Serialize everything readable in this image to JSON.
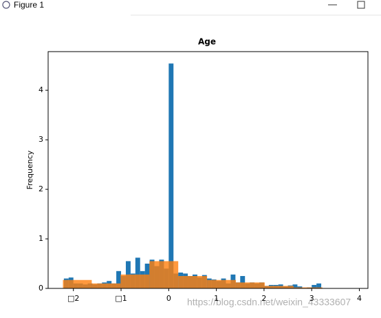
{
  "window_title": "Figure 1",
  "watermark": "https://blog.csdn.net/weixin_43333607",
  "chart_data": {
    "type": "histogram",
    "title": "Age",
    "y_label": "Frequency",
    "xlim": [
      -2.53,
      4.18
    ],
    "ylim": [
      0,
      4.78
    ],
    "xticks": [
      {
        "value": -2,
        "label": "□2"
      },
      {
        "value": -1,
        "label": "□1"
      },
      0,
      1,
      2,
      3,
      4
    ],
    "yticks": [
      0,
      1,
      2,
      3,
      4
    ],
    "series": [
      {
        "color": "#1f77b4",
        "opacity": 1,
        "bins": [
          -2.2,
          -2.1,
          -2.0,
          -1.9,
          -1.8,
          -1.7,
          -1.6,
          -1.5,
          -1.4,
          -1.3,
          -1.2,
          -1.1,
          -1.0,
          -0.9,
          -0.8,
          -0.7,
          -0.6,
          -0.5,
          -0.4,
          -0.3,
          -0.2,
          -0.1,
          0.0,
          0.1,
          0.2,
          0.3,
          0.4,
          0.5,
          0.6,
          0.7,
          0.8,
          0.9,
          1.0,
          1.1,
          1.2,
          1.3,
          1.4,
          1.5,
          1.6,
          1.7,
          1.8,
          1.9,
          2.0,
          2.1,
          2.2,
          2.3,
          2.4,
          2.5,
          2.6,
          2.7,
          2.8,
          2.9,
          3.0,
          3.1,
          3.2,
          3.3
        ],
        "values": [
          0.2,
          0.22,
          0.1,
          0.1,
          0.08,
          0.1,
          0.08,
          0.1,
          0.12,
          0.15,
          0.1,
          0.35,
          0.25,
          0.55,
          0.3,
          0.62,
          0.35,
          0.5,
          0.58,
          0.45,
          0.58,
          0.4,
          4.54,
          0.3,
          0.32,
          0.3,
          0.25,
          0.28,
          0.22,
          0.27,
          0.2,
          0.18,
          0.15,
          0.2,
          0.1,
          0.28,
          0.12,
          0.25,
          0.1,
          0.12,
          0.1,
          0.12,
          0.05,
          0.07,
          0.07,
          0.08,
          0.04,
          0.06,
          0.08,
          0.04,
          0.0,
          0.02,
          0.07,
          0.1,
          0.0
        ]
      },
      {
        "color": "#ff7f0e",
        "opacity": 0.8,
        "bins": [
          -2.22,
          -1.615,
          -1.01,
          -0.405,
          0.2,
          0.805,
          1.41,
          2.015,
          2.62,
          3.225
        ],
        "values": [
          0.17,
          0.1,
          0.28,
          0.55,
          0.25,
          0.17,
          0.12,
          0.05,
          0.02
        ]
      }
    ]
  }
}
